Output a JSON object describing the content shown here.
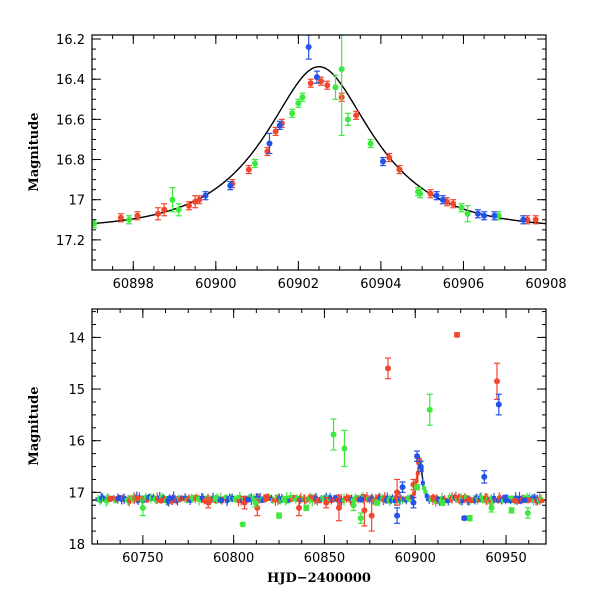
{
  "colors": {
    "red": "#f0472f",
    "green": "#3ee83e",
    "blue": "#2453e8",
    "model": "#000000"
  },
  "chart_data": [
    {
      "type": "scatter",
      "name": "zoom",
      "xlabel": "",
      "ylabel": "Magnitude",
      "xlim": [
        60897.0,
        60908.0
      ],
      "ylim": [
        17.35,
        16.18
      ],
      "xticks": [
        60898,
        60900,
        60902,
        60904,
        60906,
        60908
      ],
      "xtick_labels": [
        "60898",
        "60900",
        "60902",
        "60904",
        "60906",
        "60908"
      ],
      "yticks": [
        16.2,
        16.4,
        16.6,
        16.8,
        17.0,
        17.2
      ],
      "ytick_labels": [
        "16.2",
        "16.4",
        "16.6",
        "16.8",
        "17",
        "17.2"
      ],
      "model": {
        "t0": 60902.5,
        "tE": 2.2,
        "u0": 0.52,
        "base": 17.15
      },
      "series": [
        {
          "name": "red",
          "color": "red",
          "points": [
            [
              60897.7,
              17.09,
              0.02
            ],
            [
              60898.1,
              17.08,
              0.02
            ],
            [
              60898.6,
              17.07,
              0.03
            ],
            [
              60898.75,
              17.05,
              0.03
            ],
            [
              60899.35,
              17.03,
              0.02
            ],
            [
              60899.5,
              17.01,
              0.03
            ],
            [
              60899.6,
              17.0,
              0.02
            ],
            [
              60900.4,
              16.92,
              0.02
            ],
            [
              60900.8,
              16.85,
              0.02
            ],
            [
              60901.25,
              16.76,
              0.02
            ],
            [
              60901.45,
              16.66,
              0.02
            ],
            [
              60901.6,
              16.62,
              0.02
            ],
            [
              60902.3,
              16.42,
              0.02
            ],
            [
              60902.55,
              16.41,
              0.02
            ],
            [
              60902.7,
              16.43,
              0.02
            ],
            [
              60903.05,
              16.49,
              0.02
            ],
            [
              60903.4,
              16.58,
              0.02
            ],
            [
              60904.2,
              16.79,
              0.02
            ],
            [
              60904.45,
              16.85,
              0.02
            ],
            [
              60905.2,
              16.97,
              0.02
            ],
            [
              60905.6,
              17.01,
              0.02
            ],
            [
              60905.75,
              17.02,
              0.02
            ],
            [
              60907.55,
              17.1,
              0.02
            ],
            [
              60907.75,
              17.1,
              0.02
            ]
          ]
        },
        {
          "name": "green",
          "color": "green",
          "points": [
            [
              60897.05,
              17.12,
              0.02
            ],
            [
              60897.9,
              17.1,
              0.02
            ],
            [
              60898.95,
              17.0,
              0.06
            ],
            [
              60899.1,
              17.05,
              0.03
            ],
            [
              60900.95,
              16.82,
              0.02
            ],
            [
              60901.85,
              16.57,
              0.02
            ],
            [
              60902.0,
              16.52,
              0.02
            ],
            [
              60902.1,
              16.49,
              0.02
            ],
            [
              60902.9,
              16.44,
              0.06
            ],
            [
              60903.05,
              16.35,
              0.33
            ],
            [
              60903.2,
              16.6,
              0.03
            ],
            [
              60903.75,
              16.72,
              0.02
            ],
            [
              60904.9,
              16.96,
              0.02
            ],
            [
              60904.95,
              16.97,
              0.02
            ],
            [
              60905.95,
              17.04,
              0.02
            ],
            [
              60906.1,
              17.07,
              0.04
            ],
            [
              60906.85,
              17.08,
              0.02
            ]
          ]
        },
        {
          "name": "blue",
          "color": "blue",
          "points": [
            [
              60899.75,
              16.98,
              0.02
            ],
            [
              60900.35,
              16.93,
              0.02
            ],
            [
              60901.3,
              16.72,
              0.05
            ],
            [
              60901.55,
              16.63,
              0.02
            ],
            [
              60902.25,
              16.24,
              0.06
            ],
            [
              60902.45,
              16.39,
              0.03
            ],
            [
              60904.05,
              16.81,
              0.02
            ],
            [
              60905.35,
              16.98,
              0.02
            ],
            [
              60905.5,
              17.0,
              0.02
            ],
            [
              60906.35,
              17.07,
              0.02
            ],
            [
              60906.5,
              17.08,
              0.02
            ],
            [
              60906.75,
              17.08,
              0.02
            ],
            [
              60907.45,
              17.1,
              0.02
            ]
          ]
        }
      ]
    },
    {
      "type": "scatter",
      "name": "full",
      "xlabel": "HJD−2400000",
      "ylabel": "Magnitude",
      "xlim": [
        60722,
        60972
      ],
      "ylim": [
        18.0,
        13.45
      ],
      "xticks": [
        60750,
        60800,
        60850,
        60900,
        60950
      ],
      "xtick_labels": [
        "60750",
        "60800",
        "60850",
        "60900",
        "60950"
      ],
      "yticks": [
        14,
        15,
        16,
        17,
        18
      ],
      "ytick_labels": [
        "14",
        "15",
        "16",
        "17",
        "18"
      ],
      "model": {
        "t0": 60902.5,
        "tE": 2.2,
        "u0": 0.52,
        "base": 17.15
      },
      "baseline": {
        "start": 60725,
        "end": 60970,
        "mag": 17.13
      },
      "series": [
        {
          "name": "red",
          "color": "red",
          "points": [
            [
              60732,
              17.13,
              0.02
            ],
            [
              60747,
              17.12,
              0.02
            ],
            [
              60760,
              17.16,
              0.02
            ],
            [
              60786,
              17.2,
              0.1
            ],
            [
              60806,
              17.2,
              0.12
            ],
            [
              60813,
              17.3,
              0.15
            ],
            [
              60818,
              17.1,
              0.05
            ],
            [
              60836,
              17.3,
              0.15
            ],
            [
              60851,
              17.2,
              0.1
            ],
            [
              60858,
              17.3,
              0.25
            ],
            [
              60872,
              17.35,
              0.3
            ],
            [
              60876,
              17.45,
              0.3
            ],
            [
              60885,
              14.6,
              0.2
            ],
            [
              60890,
              17.0,
              0.25
            ],
            [
              60899,
              16.85,
              0.1
            ],
            [
              60902,
              16.4,
              0.05
            ],
            [
              60910,
              17.1,
              0.03
            ],
            [
              60923,
              13.95,
              0.04
            ],
            [
              60930,
              17.14,
              0.03
            ],
            [
              60945,
              14.85,
              0.35
            ],
            [
              60955,
              17.16,
              0.03
            ],
            [
              60962,
              17.15,
              0.03
            ]
          ]
        },
        {
          "name": "green",
          "color": "green",
          "points": [
            [
              60750,
              17.3,
              0.15
            ],
            [
              60790,
              17.12,
              0.05
            ],
            [
              60805,
              17.62,
              0.03
            ],
            [
              60812,
              17.2,
              0.08
            ],
            [
              60825,
              17.45,
              0.05
            ],
            [
              60840,
              17.3,
              0.05
            ],
            [
              60855,
              15.88,
              0.3
            ],
            [
              60861,
              16.15,
              0.35
            ],
            [
              60866,
              17.25,
              0.1
            ],
            [
              60870,
              17.5,
              0.1
            ],
            [
              60879,
              17.2,
              0.05
            ],
            [
              60901,
              16.9,
              0.05
            ],
            [
              60908,
              15.4,
              0.3
            ],
            [
              60915,
              17.2,
              0.05
            ],
            [
              60930,
              17.5,
              0.05
            ],
            [
              60942,
              17.3,
              0.08
            ],
            [
              60953,
              17.35,
              0.05
            ],
            [
              60962,
              17.4,
              0.1
            ]
          ]
        },
        {
          "name": "blue",
          "color": "blue",
          "points": [
            [
              60765,
              17.12,
              0.02
            ],
            [
              60793,
              17.15,
              0.02
            ],
            [
              60808,
              17.14,
              0.02
            ],
            [
              60870,
              17.14,
              0.02
            ],
            [
              60890,
              17.45,
              0.15
            ],
            [
              60893,
              16.9,
              0.1
            ],
            [
              60899,
              17.2,
              0.1
            ],
            [
              60901,
              16.3,
              0.1
            ],
            [
              60903,
              16.5,
              0.1
            ],
            [
              60927,
              17.5,
              0.03
            ],
            [
              60938,
              16.7,
              0.12
            ],
            [
              60946,
              15.3,
              0.2
            ],
            [
              60950,
              17.15,
              0.02
            ],
            [
              60960,
              17.15,
              0.02
            ]
          ]
        }
      ]
    }
  ]
}
